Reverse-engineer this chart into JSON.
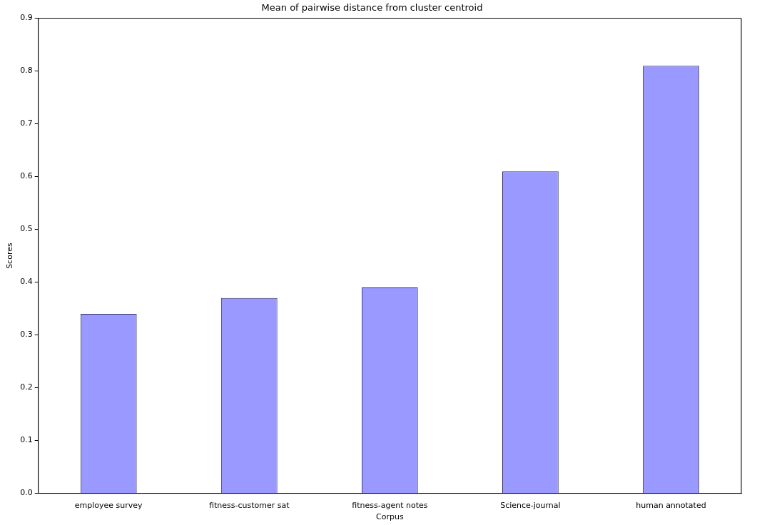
{
  "chart_data": {
    "type": "bar",
    "title": "Mean of pairwise distance from cluster centroid",
    "xlabel": "Corpus",
    "ylabel": "Scores",
    "categories": [
      "employee survey",
      "fitness-customer sat",
      "fitness-agent notes",
      "Science-journal",
      "human annotated"
    ],
    "values": [
      0.34,
      0.37,
      0.39,
      0.61,
      0.81
    ],
    "color": "#9999ff",
    "ylim": [
      0,
      0.9
    ],
    "yticks": [
      {
        "value": 0,
        "label": "0.0"
      },
      0.1,
      0.2,
      0.3,
      0.4,
      0.5,
      0.6,
      0.7,
      0.8,
      0.9
    ],
    "grid": false,
    "legend": false
  }
}
